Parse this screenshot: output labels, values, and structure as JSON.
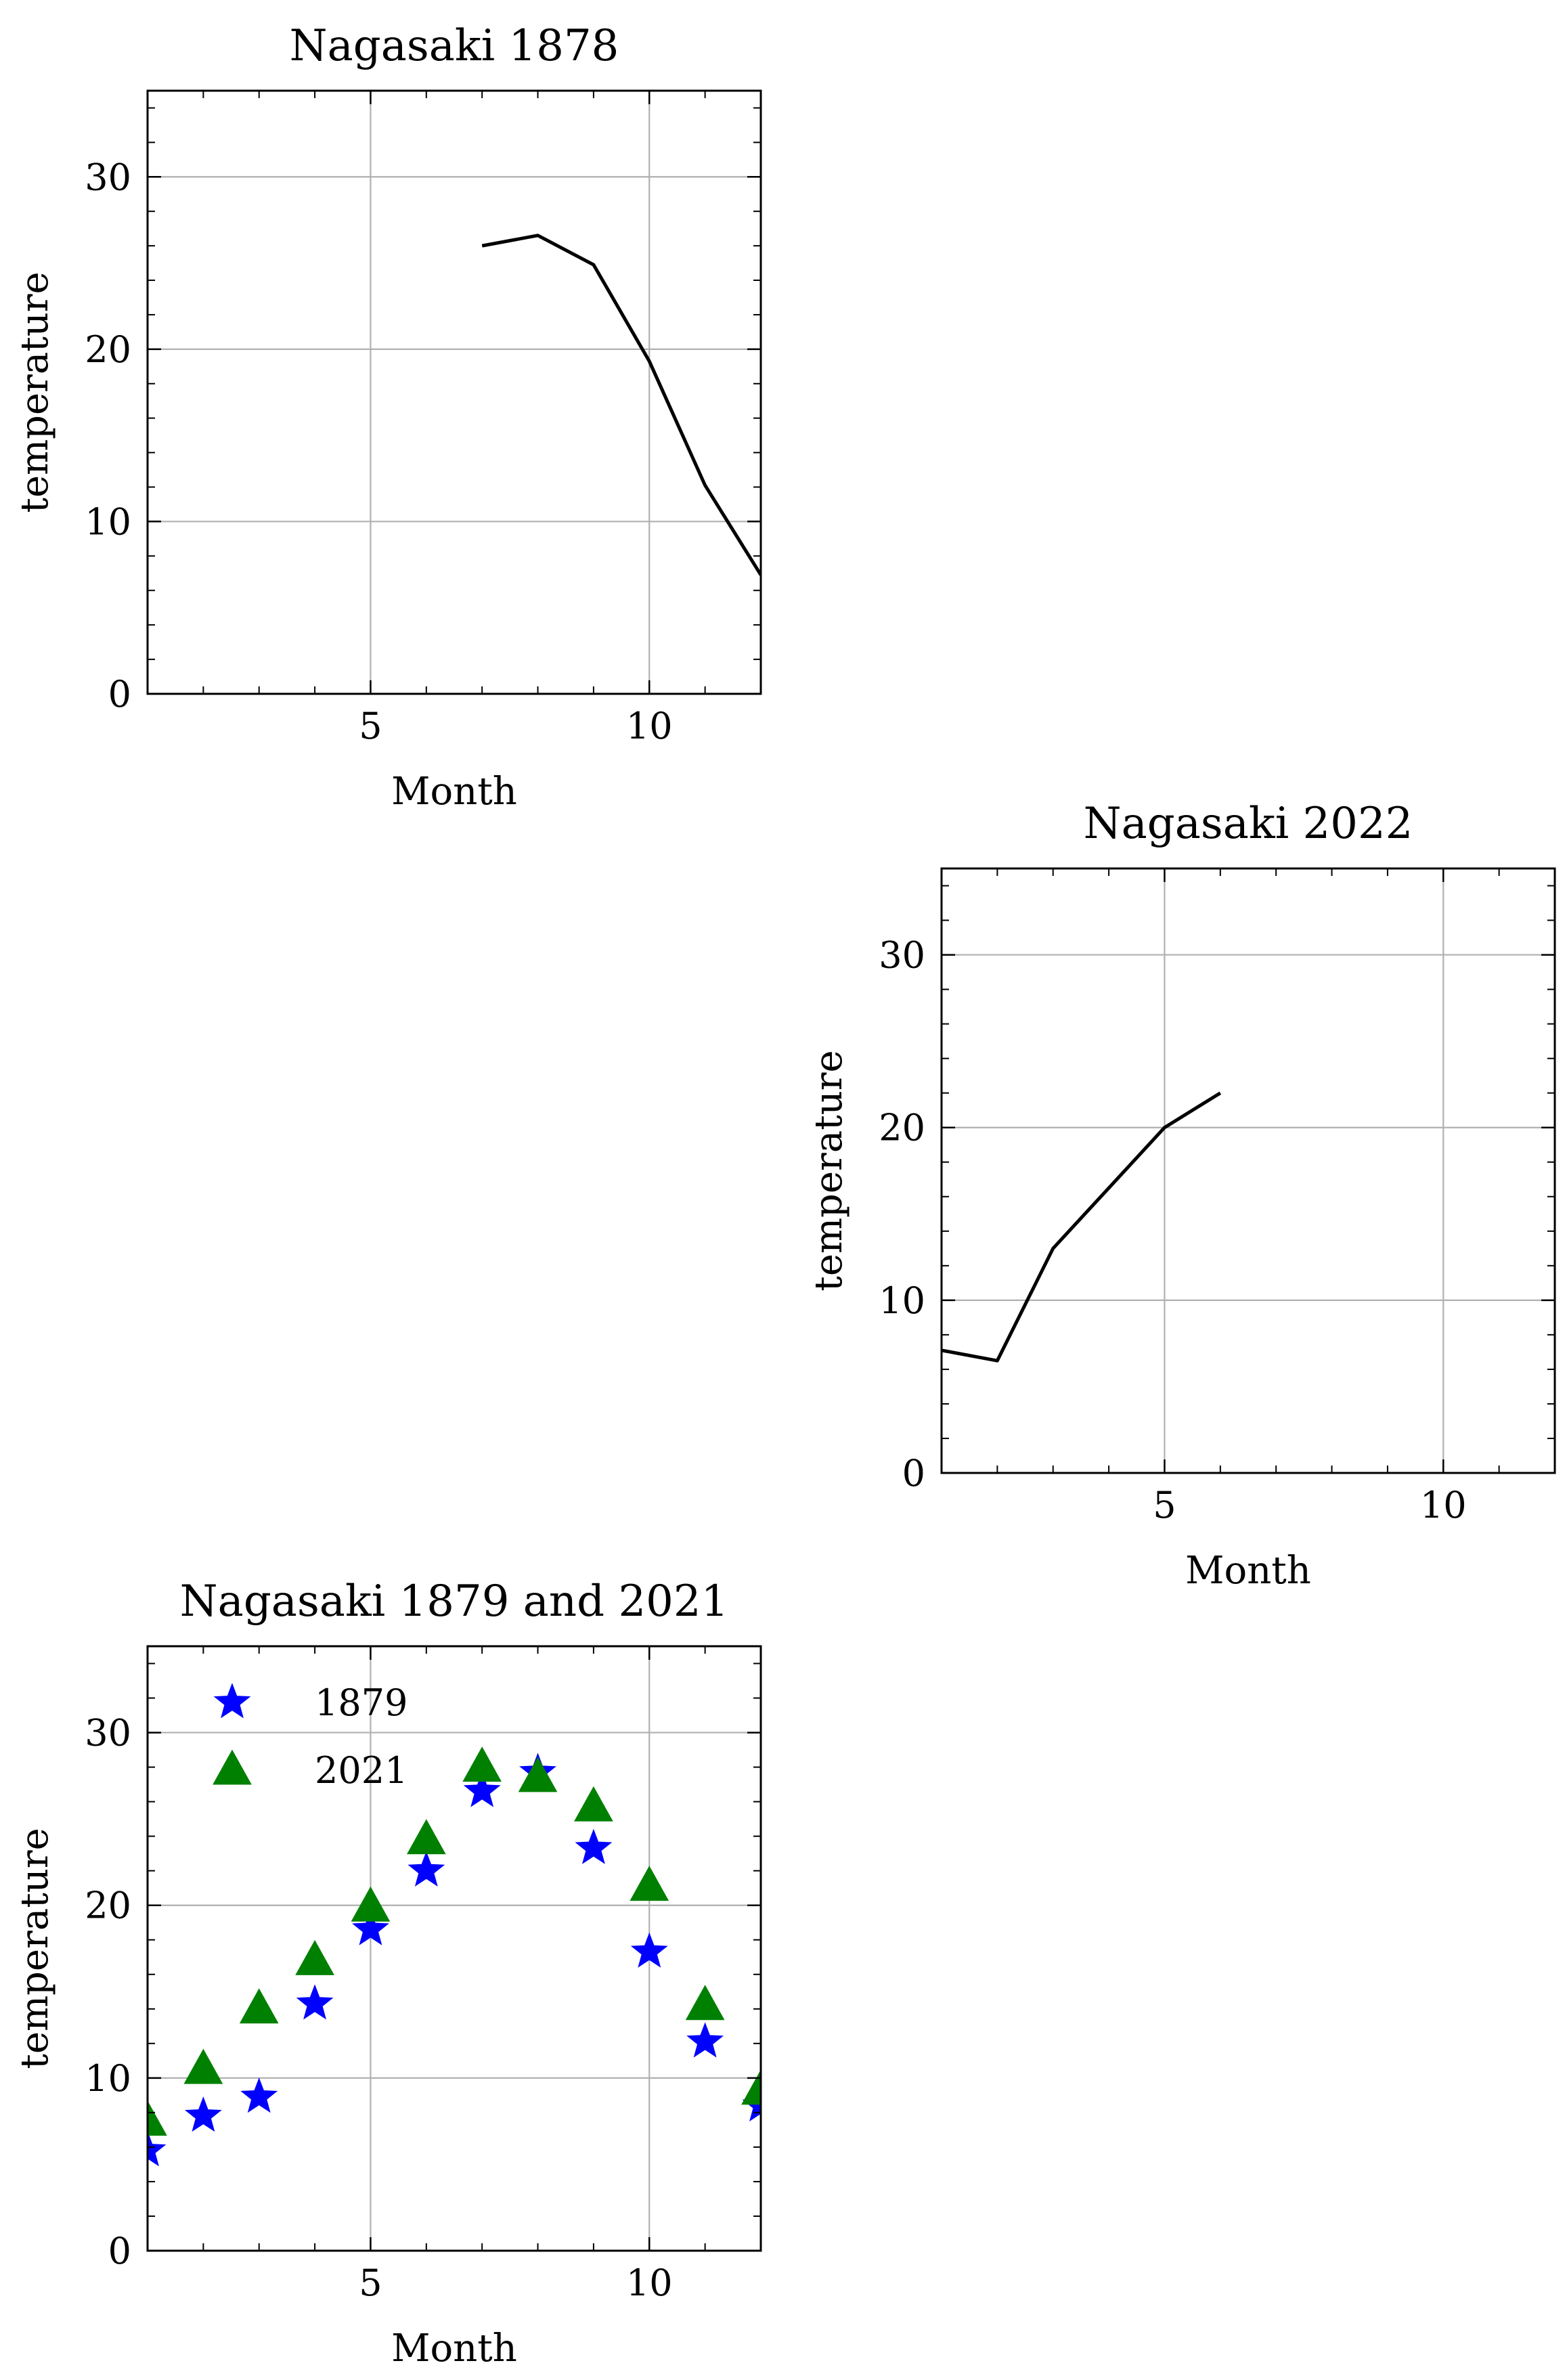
{
  "chart_data": [
    {
      "type": "line",
      "title": "Nagasaki 1878",
      "xlabel": "Month",
      "ylabel": "temperature",
      "xlim": [
        1,
        12
      ],
      "ylim": [
        0,
        35
      ],
      "xticks": [
        5,
        10
      ],
      "yticks": [
        0,
        10,
        20,
        30
      ],
      "grid": true,
      "series": [
        {
          "color": "#000000",
          "marker": "none",
          "x": [
            7,
            8,
            9,
            10,
            11,
            12
          ],
          "y": [
            26.0,
            26.6,
            24.9,
            19.3,
            12.1,
            6.9
          ]
        }
      ]
    },
    {
      "type": "line",
      "title": "Nagasaki 2022",
      "xlabel": "Month",
      "ylabel": "temperature",
      "xlim": [
        1,
        12
      ],
      "ylim": [
        0,
        35
      ],
      "xticks": [
        5,
        10
      ],
      "yticks": [
        0,
        10,
        20,
        30
      ],
      "grid": true,
      "series": [
        {
          "color": "#000000",
          "marker": "none",
          "x": [
            1,
            2,
            3,
            4,
            5,
            6
          ],
          "y": [
            7.1,
            6.5,
            13.0,
            16.5,
            20.0,
            22.0
          ]
        }
      ]
    },
    {
      "type": "scatter",
      "title": "Nagasaki 1879 and 2021",
      "xlabel": "Month",
      "ylabel": "temperature",
      "xlim": [
        1,
        12
      ],
      "ylim": [
        0,
        35
      ],
      "xticks": [
        5,
        10
      ],
      "yticks": [
        0,
        10,
        20,
        30
      ],
      "grid": true,
      "legend": "upper-left",
      "series": [
        {
          "name": "1879",
          "color": "#0000ff",
          "marker": "star",
          "x": [
            1,
            2,
            3,
            4,
            5,
            6,
            7,
            8,
            9,
            10,
            11,
            12
          ],
          "y": [
            5.8,
            7.8,
            8.9,
            14.3,
            18.6,
            22.0,
            26.6,
            27.7,
            23.3,
            17.3,
            12.1,
            8.4
          ]
        },
        {
          "name": "2021",
          "color": "#008000",
          "marker": "triangle",
          "x": [
            1,
            2,
            3,
            4,
            5,
            6,
            7,
            8,
            9,
            10,
            11,
            12
          ],
          "y": [
            7.5,
            10.5,
            14.0,
            16.8,
            19.9,
            23.8,
            28.0,
            27.4,
            25.7,
            21.1,
            14.2,
            9.3
          ]
        }
      ]
    }
  ]
}
